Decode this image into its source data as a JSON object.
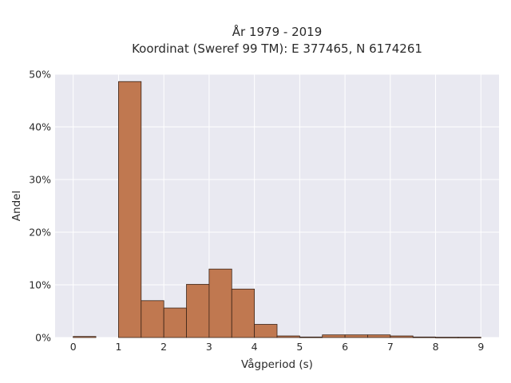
{
  "chart_data": {
    "type": "bar",
    "title_line1": "År 1979 - 2019",
    "title_line2": "Koordinat (Sweref 99 TM): E 377465, N 6174261",
    "xlabel": "Vågperiod (s)",
    "ylabel": "Andel",
    "bin_width": 0.5,
    "bins": [
      {
        "x0": 0.0,
        "x1": 0.5,
        "value": 0.2
      },
      {
        "x0": 0.5,
        "x1": 1.0,
        "value": 0
      },
      {
        "x0": 1.0,
        "x1": 1.5,
        "value": 48.6
      },
      {
        "x0": 1.5,
        "x1": 2.0,
        "value": 7.0
      },
      {
        "x0": 2.0,
        "x1": 2.5,
        "value": 5.6
      },
      {
        "x0": 2.5,
        "x1": 3.0,
        "value": 10.1
      },
      {
        "x0": 3.0,
        "x1": 3.5,
        "value": 13.0
      },
      {
        "x0": 3.5,
        "x1": 4.0,
        "value": 9.2
      },
      {
        "x0": 4.0,
        "x1": 4.5,
        "value": 2.5
      },
      {
        "x0": 4.5,
        "x1": 5.0,
        "value": 0.3
      },
      {
        "x0": 5.0,
        "x1": 5.5,
        "value": 0.1
      },
      {
        "x0": 5.5,
        "x1": 6.0,
        "value": 0.5
      },
      {
        "x0": 6.0,
        "x1": 6.5,
        "value": 0.5
      },
      {
        "x0": 6.5,
        "x1": 7.0,
        "value": 0.5
      },
      {
        "x0": 7.0,
        "x1": 7.5,
        "value": 0.3
      },
      {
        "x0": 7.5,
        "x1": 8.0,
        "value": 0.1
      },
      {
        "x0": 8.0,
        "x1": 8.5,
        "value": 0.05
      },
      {
        "x0": 8.5,
        "x1": 9.0,
        "value": 0.05
      }
    ],
    "xlim": [
      -0.4,
      9.4
    ],
    "ylim": [
      0,
      50
    ],
    "xticks": [
      0,
      1,
      2,
      3,
      4,
      5,
      6,
      7,
      8,
      9
    ],
    "xtick_labels": [
      "0",
      "1",
      "2",
      "3",
      "4",
      "5",
      "6",
      "7",
      "8",
      "9"
    ],
    "yticks": [
      0,
      10,
      20,
      30,
      40,
      50
    ],
    "ytick_labels": [
      "0%",
      "10%",
      "20%",
      "30%",
      "40%",
      "50%"
    ],
    "grid": true,
    "colors": {
      "bar_fill": "#c07850",
      "bar_edge": "#3a2418",
      "plot_background": "#e9e9f1",
      "grid": "#ffffff"
    }
  }
}
